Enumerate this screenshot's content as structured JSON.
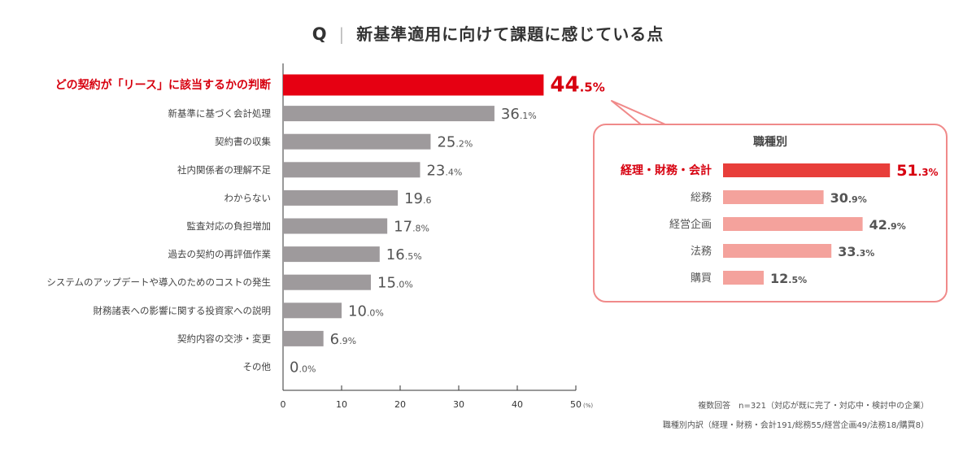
{
  "title": {
    "q": "Q",
    "text": "新基準適用に向けて課題に感じている点"
  },
  "chart_data": {
    "type": "bar",
    "orientation": "horizontal",
    "categories": [
      "どの契約が「リース」に該当するかの判断",
      "新基準に基づく会計処理",
      "契約書の収集",
      "社内関係者の理解不足",
      "わからない",
      "監査対応の負担増加",
      "過去の契約の再評価作業",
      "システムのアップデートや導入のためのコストの発生",
      "財務諸表への影響に関する投資家への説明",
      "契約内容の交渉・変更",
      "その他"
    ],
    "values": [
      44.5,
      36.1,
      25.2,
      23.4,
      19.6,
      17.8,
      16.5,
      15.0,
      10.0,
      6.9,
      0.0
    ],
    "value_labels": [
      [
        "44",
        ".5%"
      ],
      [
        "36",
        ".1%"
      ],
      [
        "25",
        ".2%"
      ],
      [
        "23",
        ".4%"
      ],
      [
        "19",
        ".6"
      ],
      [
        "17",
        ".8%"
      ],
      [
        "16",
        ".5%"
      ],
      [
        "15",
        ".0%"
      ],
      [
        "10",
        ".0%"
      ],
      [
        "6",
        ".9%"
      ],
      [
        "0",
        ".0%"
      ]
    ],
    "highlight_index": 0,
    "xlim": [
      0,
      50
    ],
    "xticks": [
      "0",
      "10",
      "20",
      "30",
      "40",
      "50"
    ],
    "x_unit": "(%)",
    "grid": false,
    "colors": {
      "highlight": "#e60012",
      "bar": "#9e9a9c",
      "highlight_text": "#d7000f"
    },
    "inset": {
      "title": "職種別",
      "categories": [
        "経理・財務・会計",
        "総務",
        "経営企画",
        "法務",
        "購買"
      ],
      "values": [
        51.3,
        30.9,
        42.9,
        33.3,
        12.5
      ],
      "value_labels": [
        [
          "51",
          ".3%"
        ],
        [
          "30",
          ".9%"
        ],
        [
          "42",
          ".9%"
        ],
        [
          "33",
          ".3%"
        ],
        [
          "12",
          ".5%"
        ]
      ],
      "highlight_index": 0,
      "colors": {
        "highlight": "#e83e3a",
        "bar": "#f4a29c",
        "border": "#f08a8a"
      }
    }
  },
  "notes": {
    "line1": "複数回答　n=321（対応が既に完了・対応中・検討中の企業）",
    "line2": "職種別内訳（経理・財務・会計191/総務55/経営企画49/法務18/購買8）"
  }
}
